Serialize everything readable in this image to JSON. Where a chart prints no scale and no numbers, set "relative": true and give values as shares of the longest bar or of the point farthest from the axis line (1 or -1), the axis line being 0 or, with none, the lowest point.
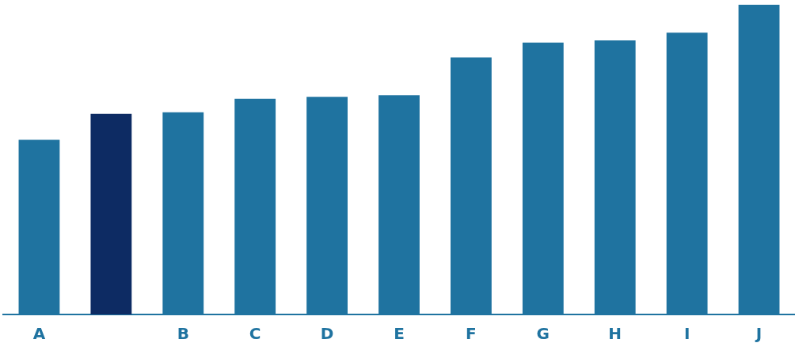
{
  "chart_data": {
    "type": "bar",
    "relative": true,
    "categories": [
      "A",
      null,
      "B",
      "C",
      "D",
      "E",
      "F",
      "G",
      "H",
      "I",
      "J"
    ],
    "values": [
      0.564,
      0.648,
      0.653,
      0.696,
      0.703,
      0.708,
      0.83,
      0.878,
      0.885,
      0.91,
      1
    ],
    "colors": [
      "#1f73a0",
      "#0d2b63",
      "#1f73a0",
      "#1f73a0",
      "#1f73a0",
      "#1f73a0",
      "#1f73a0",
      "#1f73a0",
      "#1f73a0",
      "#1f73a0",
      "#1f73a0"
    ],
    "grid": false,
    "legend": false
  }
}
